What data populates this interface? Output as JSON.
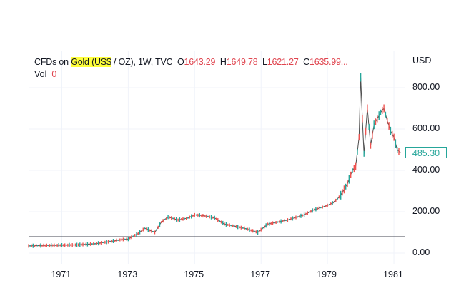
{
  "header": {
    "symbol_prefix": "CFDs on ",
    "symbol_highlight": "Gold (US$",
    "symbol_suffix": " / OZ), 1W, TVC",
    "open_label": "O",
    "open_value": "1643.29",
    "high_label": "H",
    "high_value": "1649.78",
    "low_label": "L",
    "low_value": "1621.27",
    "close_label": "C",
    "close_value": "1635.99..."
  },
  "volume": {
    "label": "Vol",
    "value": "0"
  },
  "currency": "USD",
  "last_price": "485.30",
  "colors": {
    "up": "#26a69a",
    "down": "#ef5350",
    "highlight": "#ffff3b",
    "line": "#2a2e39"
  },
  "chart_data": {
    "type": "line",
    "ylim": [
      0,
      880
    ],
    "yticks": [
      {
        "value": 0,
        "label": "0.00"
      },
      {
        "value": 200,
        "label": "200.00"
      },
      {
        "value": 400,
        "label": "400.00"
      },
      {
        "value": 600,
        "label": "600.00"
      },
      {
        "value": 800,
        "label": "800.00"
      }
    ],
    "xticks": [
      "1971",
      "1973",
      "1975",
      "1977",
      "1979",
      "1981"
    ],
    "reference_line": 80,
    "series": [
      {
        "x": [
          1970.0,
          1970.5,
          1971.0,
          1971.5,
          1972.0,
          1972.4,
          1972.8,
          1973.0,
          1973.3,
          1973.5,
          1973.8,
          1974.0,
          1974.2,
          1974.5,
          1974.8,
          1975.0,
          1975.3,
          1975.6,
          1975.9,
          1976.2,
          1976.5,
          1976.7,
          1976.9,
          1977.2,
          1977.5,
          1977.8,
          1978.0,
          1978.3,
          1978.6,
          1978.9,
          1979.0,
          1979.2,
          1979.4,
          1979.6,
          1979.75,
          1979.85,
          1979.95,
          1980.0,
          1980.05,
          1980.1,
          1980.2,
          1980.3,
          1980.4,
          1980.5,
          1980.6,
          1980.7,
          1980.8,
          1980.9,
          1981.0,
          1981.1,
          1981.2
        ],
        "y": [
          35,
          37,
          38,
          40,
          45,
          55,
          65,
          68,
          95,
          120,
          100,
          150,
          175,
          160,
          170,
          185,
          180,
          170,
          140,
          130,
          120,
          110,
          100,
          140,
          150,
          160,
          170,
          185,
          210,
          225,
          230,
          245,
          280,
          335,
          400,
          420,
          560,
          850,
          650,
          480,
          700,
          520,
          620,
          650,
          680,
          700,
          640,
          590,
          560,
          500,
          485
        ]
      }
    ]
  }
}
